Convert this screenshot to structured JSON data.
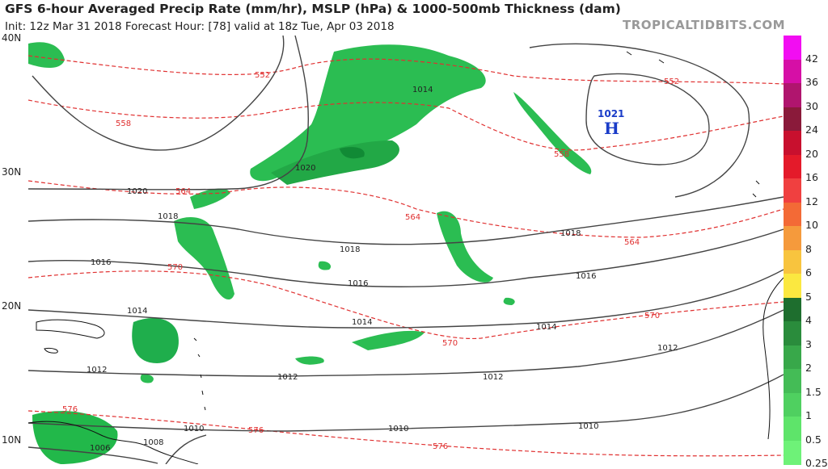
{
  "header": {
    "title": "GFS 6-hour Averaged Precip Rate (mm/hr), MSLP (hPa) & 1000-500mb Thickness (dam)",
    "subtitle": "Init: 12z Mar 31 2018   Forecast Hour: [78]   valid at 18z Tue, Apr 03 2018",
    "site": "TROPICALTIDBITS.COM"
  },
  "map": {
    "lat_labels": [
      "40N",
      "30N",
      "20N",
      "10N"
    ],
    "pressure_center": {
      "value": "1021",
      "letter": "H",
      "color": "#1a3cc8"
    },
    "isobar_labels": [
      "1014",
      "1020",
      "1020",
      "1018",
      "1018",
      "1018",
      "1016",
      "1016",
      "1016",
      "1014",
      "1014",
      "1014",
      "1012",
      "1012",
      "1012",
      "1012",
      "1010",
      "1010",
      "1010",
      "1008",
      "1006"
    ],
    "thickness_labels": [
      "552",
      "552",
      "558",
      "558",
      "564",
      "564",
      "564",
      "570",
      "570",
      "570",
      "576",
      "576",
      "576"
    ],
    "colors": {
      "isobar": "#333333",
      "thickness": "#e03030",
      "precip": "#22b84a",
      "precip_dark": "#0d8a33",
      "land": "#111111"
    }
  },
  "colorbar": {
    "labels": [
      "42",
      "36",
      "30",
      "24",
      "20",
      "16",
      "12",
      "10",
      "8",
      "6",
      "5",
      "4",
      "3",
      "2",
      "1.5",
      "1",
      "0.5",
      "0.25"
    ],
    "colors": [
      "#f20df2",
      "#d60fa6",
      "#b0156e",
      "#8a1a3a",
      "#c8102e",
      "#e41a2a",
      "#f04040",
      "#f36a36",
      "#f59a3c",
      "#f8c43e",
      "#fbe840",
      "#1e6e2e",
      "#2a8c3c",
      "#38a84a",
      "#44bc56",
      "#4fd060",
      "#5ee46a",
      "#6ef278"
    ]
  }
}
